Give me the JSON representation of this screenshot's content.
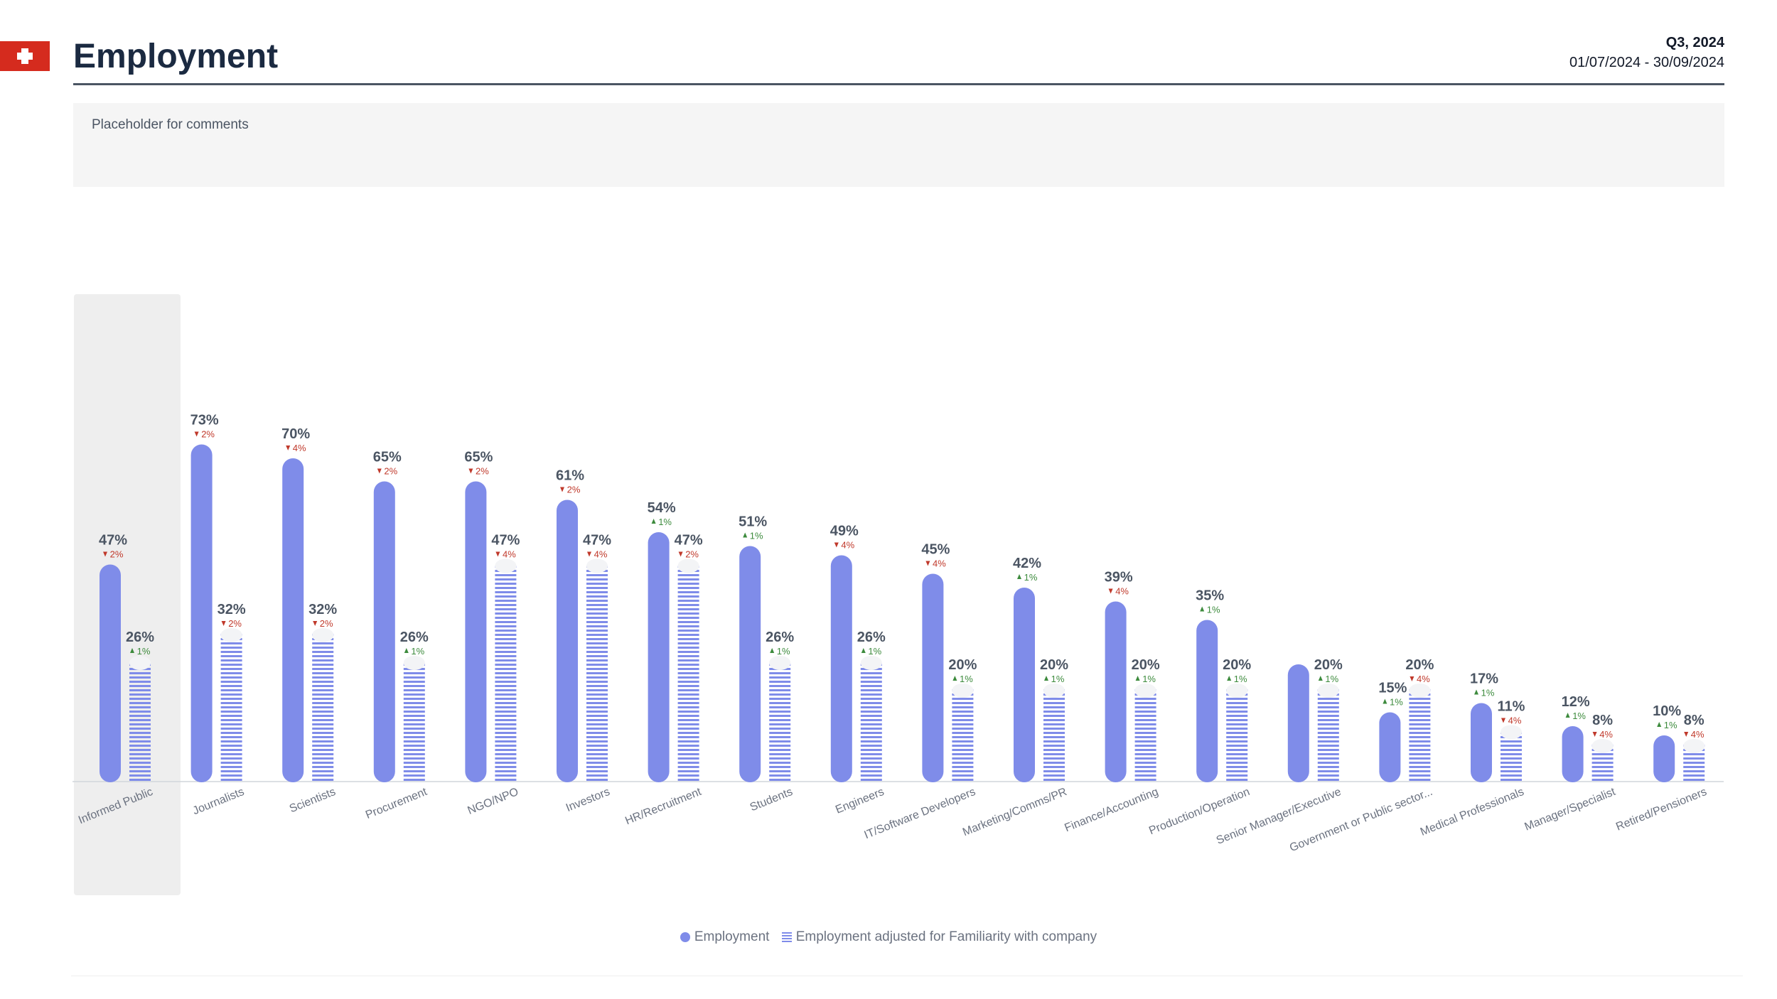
{
  "header": {
    "title": "Employment",
    "quarter": "Q3, 2024",
    "date_range": "01/07/2024 - 30/09/2024"
  },
  "comments": {
    "placeholder": "Placeholder for comments"
  },
  "colors": {
    "bar": "#7f8ce9",
    "highlight_bg": "#eeeeee",
    "up": "#3d8b3d",
    "down": "#c0392b",
    "value_text": "#4b5563",
    "axis_text": "#6b7280"
  },
  "legend": {
    "series1": "Employment",
    "series2": "Employment adjusted for Familiarity with company"
  },
  "chart_data": {
    "type": "bar",
    "highlighted_category": "Informed Public",
    "categories": [
      "Informed Public",
      "Journalists",
      "Scientists",
      "Procurement",
      "NGO/NPO",
      "Investors",
      "HR/Recruitment",
      "Students",
      "Engineers",
      "IT/Software Developers",
      "Marketing/Comms/PR",
      "Finance/Accounting",
      "Production/Operation",
      "Senior Manager/Executive",
      "Government or Public sector...",
      "Medical Professionals",
      "Manager/Specialist",
      "Retired/Pensioners"
    ],
    "series": [
      {
        "name": "Employment",
        "values": [
          47,
          73,
          70,
          65,
          65,
          61,
          54,
          51,
          49,
          45,
          42,
          39,
          35,
          null,
          15,
          17,
          12,
          10
        ],
        "labels": [
          "47%",
          "73%",
          "70%",
          "65%",
          "65%",
          "61%",
          "54%",
          "51%",
          "49%",
          "45%",
          "42%",
          "39%",
          "35%",
          null,
          "15%",
          "17%",
          "12%",
          "10%"
        ],
        "change_labels": [
          "2%",
          "2%",
          "4%",
          "2%",
          "2%",
          "2%",
          "1%",
          "1%",
          "4%",
          "4%",
          "1%",
          "4%",
          "1%",
          null,
          "1%",
          "1%",
          "1%",
          "1%"
        ],
        "change_direction": [
          "down",
          "down",
          "down",
          "down",
          "down",
          "down",
          "up",
          "up",
          "down",
          "down",
          "up",
          "down",
          "up",
          null,
          "up",
          "up",
          "up",
          "up"
        ]
      },
      {
        "name": "Employment adjusted for Familiarity with company",
        "values": [
          26,
          32,
          32,
          26,
          47,
          47,
          47,
          26,
          26,
          20,
          20,
          20,
          20,
          20,
          20,
          11,
          8,
          8
        ],
        "labels": [
          "26%",
          "32%",
          "32%",
          "26%",
          "47%",
          "47%",
          "47%",
          "26%",
          "26%",
          "20%",
          "20%",
          "20%",
          "20%",
          "20%",
          "20%",
          "11%",
          "8%",
          "8%"
        ],
        "change_labels": [
          "1%",
          "2%",
          "2%",
          "1%",
          "4%",
          "4%",
          "2%",
          "1%",
          "1%",
          "1%",
          "1%",
          "1%",
          "1%",
          "1%",
          "4%",
          "4%",
          "4%",
          "4%"
        ],
        "change_direction": [
          "up",
          "down",
          "down",
          "up",
          "down",
          "down",
          "down",
          "up",
          "up",
          "up",
          "up",
          "up",
          "up",
          "up",
          "down",
          "down",
          "down",
          "down"
        ]
      }
    ],
    "ylim": [
      0,
      100
    ],
    "grid": false,
    "legend_position": "bottom-center"
  }
}
